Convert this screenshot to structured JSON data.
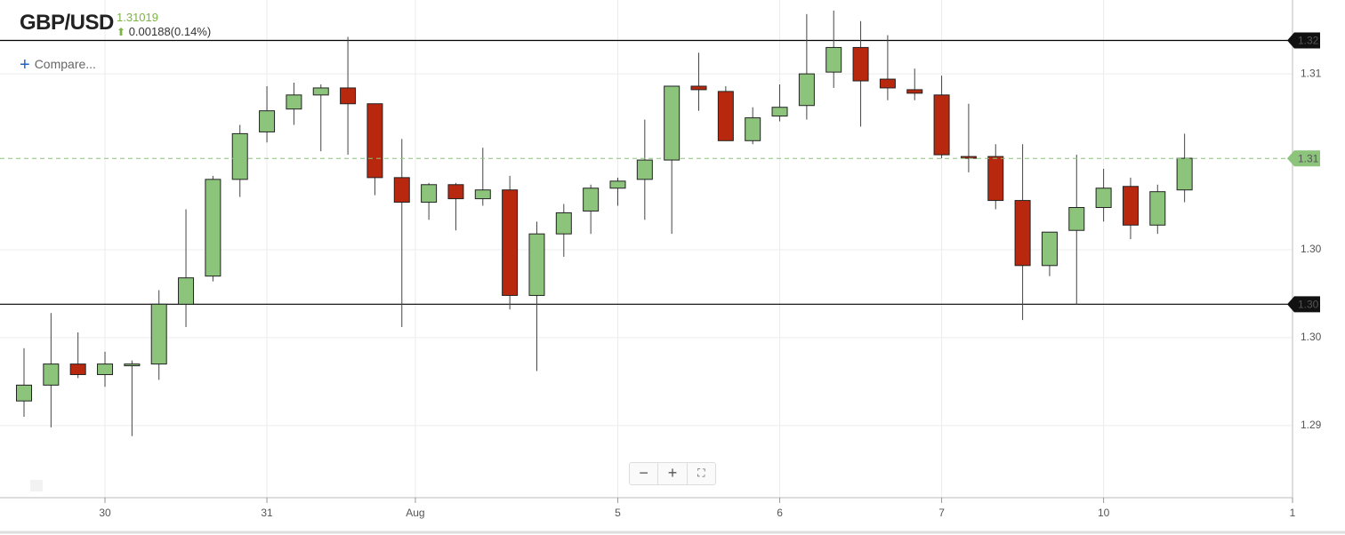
{
  "header": {
    "symbol": "GBP/USD",
    "price": "1.31019",
    "change": "0.00188(0.14%)",
    "compare": "Compare..."
  },
  "chart_data": {
    "type": "candlestick",
    "up_color": "#8cc47c",
    "down_color": "#b8280f",
    "x": [
      1,
      2,
      3,
      4,
      5,
      6,
      7,
      8,
      9,
      10,
      11,
      12,
      13,
      14,
      15,
      16,
      17,
      18,
      19,
      20,
      21,
      22,
      23,
      24,
      25,
      26,
      27,
      28,
      29,
      30,
      31,
      32,
      33,
      34,
      35,
      36,
      37,
      38,
      39,
      40,
      41,
      42,
      43,
      44
    ],
    "open": [
      1.2964,
      1.2973,
      1.2985,
      1.2979,
      1.2984,
      1.2985,
      1.3019,
      1.3035,
      1.309,
      1.3117,
      1.313,
      1.3138,
      1.3142,
      1.3133,
      1.3091,
      1.3077,
      1.3087,
      1.3079,
      1.3084,
      1.3024,
      1.3059,
      1.3072,
      1.3085,
      1.309,
      1.3101,
      1.3143,
      1.314,
      1.3112,
      1.3126,
      1.3132,
      1.3151,
      1.3165,
      1.3147,
      1.3141,
      1.3138,
      1.3103,
      1.3103,
      1.3078,
      1.3041,
      1.3061,
      1.3074,
      1.3086,
      1.3064,
      1.3084
    ],
    "high": [
      1.2994,
      1.3014,
      1.3003,
      1.2992,
      1.2987,
      1.3027,
      1.3073,
      1.3092,
      1.3121,
      1.3143,
      1.3145,
      1.3144,
      1.3171,
      1.3133,
      1.3113,
      1.3088,
      1.3088,
      1.3108,
      1.3092,
      1.3066,
      1.3076,
      1.3087,
      1.3091,
      1.3124,
      1.3143,
      1.3162,
      1.3143,
      1.3131,
      1.3144,
      1.3184,
      1.3186,
      1.318,
      1.3172,
      1.3153,
      1.3149,
      1.3133,
      1.311,
      1.311,
      1.306,
      1.3104,
      1.3096,
      1.3091,
      1.3087,
      1.3116
    ],
    "low": [
      1.2955,
      1.2949,
      1.2977,
      1.2972,
      1.2944,
      1.2976,
      1.3006,
      1.3032,
      1.308,
      1.3111,
      1.3121,
      1.3106,
      1.3104,
      1.3081,
      1.3006,
      1.3067,
      1.3061,
      1.3075,
      1.3016,
      1.2981,
      1.3046,
      1.3059,
      1.3075,
      1.3067,
      1.3059,
      1.3129,
      1.3112,
      1.311,
      1.3123,
      1.3124,
      1.3142,
      1.312,
      1.3135,
      1.3135,
      1.3102,
      1.3094,
      1.3073,
      1.301,
      1.3035,
      1.3019,
      1.3066,
      1.3056,
      1.3059,
      1.3077
    ],
    "close": [
      1.2973,
      1.2985,
      1.2979,
      1.2985,
      1.2985,
      1.3019,
      1.3034,
      1.309,
      1.3116,
      1.3129,
      1.3138,
      1.3142,
      1.3133,
      1.3091,
      1.3077,
      1.3087,
      1.3079,
      1.3084,
      1.3024,
      1.3059,
      1.3071,
      1.3085,
      1.3089,
      1.3101,
      1.3143,
      1.3141,
      1.3112,
      1.3125,
      1.3131,
      1.315,
      1.3165,
      1.3146,
      1.3142,
      1.3139,
      1.3104,
      1.3102,
      1.3078,
      1.3041,
      1.306,
      1.3074,
      1.3085,
      1.3064,
      1.3083,
      1.3102
    ],
    "xlim": [
      0.11,
      48
    ],
    "xticks": [
      {
        "value": 4,
        "label": "30"
      },
      {
        "value": 10,
        "label": "31"
      },
      {
        "value": 15.5,
        "label": "Aug"
      },
      {
        "value": 23,
        "label": "5"
      },
      {
        "value": 29,
        "label": "6"
      },
      {
        "value": 35,
        "label": "7"
      },
      {
        "value": 41,
        "label": "10"
      },
      {
        "value": 48,
        "label": "1"
      }
    ],
    "ylim": [
      1.2909,
      1.3192
    ],
    "yticks": [
      {
        "value": 1.315,
        "label": "1.31"
      },
      {
        "value": 1.305,
        "label": "1.30"
      },
      {
        "value": 1.3,
        "label": "1.30"
      },
      {
        "value": 1.295,
        "label": "1.29"
      }
    ],
    "grid": true,
    "levels": [
      {
        "value": 1.3169,
        "label": "1.32",
        "color": "#000000"
      },
      {
        "value": 1.3019,
        "label": "1.30",
        "color": "#000000"
      }
    ],
    "price_line": {
      "value": 1.31019,
      "label": "1.31",
      "color": "#8cc47c"
    }
  }
}
